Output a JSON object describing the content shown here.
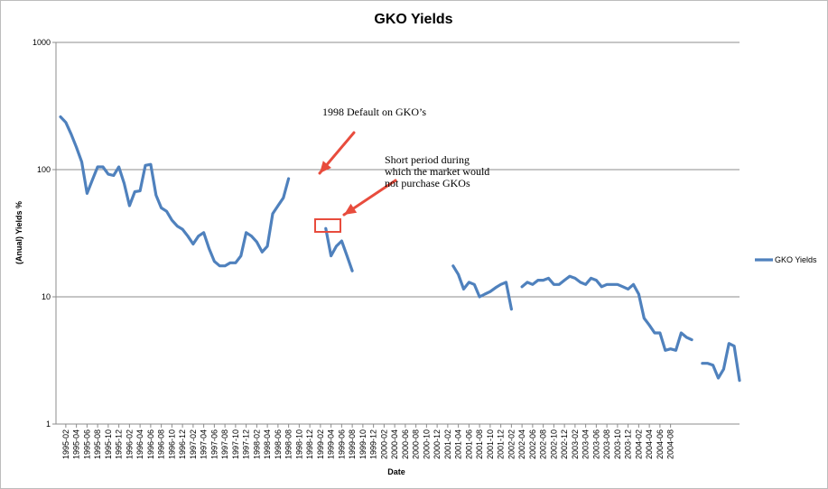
{
  "chart_data": {
    "type": "line",
    "title": "GKO Yields",
    "xlabel": "Date",
    "ylabel": "(Anual) Yields %",
    "yscale": "log",
    "ylim": [
      1,
      1000
    ],
    "yticks": [
      1,
      10,
      100,
      1000
    ],
    "ytick_labels": [
      "1",
      "10",
      "100",
      "1000"
    ],
    "grid": true,
    "legend": {
      "position": "right",
      "entries": [
        "GKO Yields"
      ]
    },
    "series": [
      {
        "name": "GKO Yields",
        "color": "#4f81bd",
        "x_start": "1995-01",
        "values": [
          260,
          235,
          190,
          150,
          115,
          65,
          83,
          105,
          105,
          92,
          90,
          105,
          78,
          52,
          67,
          68,
          108,
          110,
          63,
          50,
          47,
          40,
          36,
          34,
          30,
          26,
          30,
          32,
          24,
          19,
          17.5,
          17.5,
          18.5,
          18.5,
          21,
          32,
          30,
          27,
          22.5,
          25,
          45,
          52,
          60,
          85,
          null,
          null,
          null,
          null,
          null,
          null,
          34.5,
          21,
          25,
          27.5,
          21,
          16,
          null,
          null,
          null,
          null,
          null,
          null,
          null,
          null,
          null,
          null,
          null,
          null,
          null,
          null,
          null,
          null,
          null,
          null,
          17.5,
          15,
          11.5,
          13,
          12.5,
          10,
          10.5,
          11,
          11.8,
          12.5,
          13,
          8,
          null,
          12,
          13,
          12.5,
          13.5,
          13.5,
          14,
          12.5,
          12.5,
          13.5,
          14.5,
          14,
          13,
          12.5,
          14,
          13.5,
          12,
          12.5,
          12.5,
          12.5,
          12,
          11.5,
          12.5,
          10.5,
          6.8,
          6,
          5.2,
          5.2,
          3.8,
          3.9,
          3.8,
          5.2,
          4.8,
          4.6,
          null,
          3,
          3,
          2.9,
          2.3,
          2.7,
          4.3,
          4.1,
          2.2
        ]
      }
    ],
    "x_tick_labels": [
      "1995-02",
      "1995-04",
      "1995-06",
      "1995-08",
      "1995-10",
      "1995-12",
      "1996-02",
      "1996-04",
      "1996-06",
      "1996-08",
      "1996-10",
      "1996-12",
      "1997-02",
      "1997-04",
      "1997-06",
      "1997-08",
      "1997-10",
      "1997-12",
      "1998-02",
      "1998-04",
      "1998-06",
      "1998-08",
      "1998-10",
      "1998-12",
      "1999-02",
      "1999-04",
      "1999-06",
      "1999-08",
      "1999-10",
      "1999-12",
      "2000-02",
      "2000-04",
      "2000-06",
      "2000-08",
      "2000-10",
      "2000-12",
      "2001-02",
      "2001-04",
      "2001-06",
      "2001-08",
      "2001-10",
      "2001-12",
      "2002-02",
      "2002-04",
      "2002-06",
      "2002-08",
      "2002-10",
      "2002-12",
      "2003-02",
      "2003-04",
      "2003-06",
      "2003-08",
      "2003-10",
      "2003-12",
      "2004-02",
      "2004-04",
      "2004-06",
      "2004-08"
    ],
    "annotations": [
      {
        "text_lines": [
          "1998 Default on GKO’s"
        ]
      },
      {
        "text_lines": [
          "Short period during",
          "which the market would",
          "not purchase GKOs"
        ]
      }
    ]
  }
}
